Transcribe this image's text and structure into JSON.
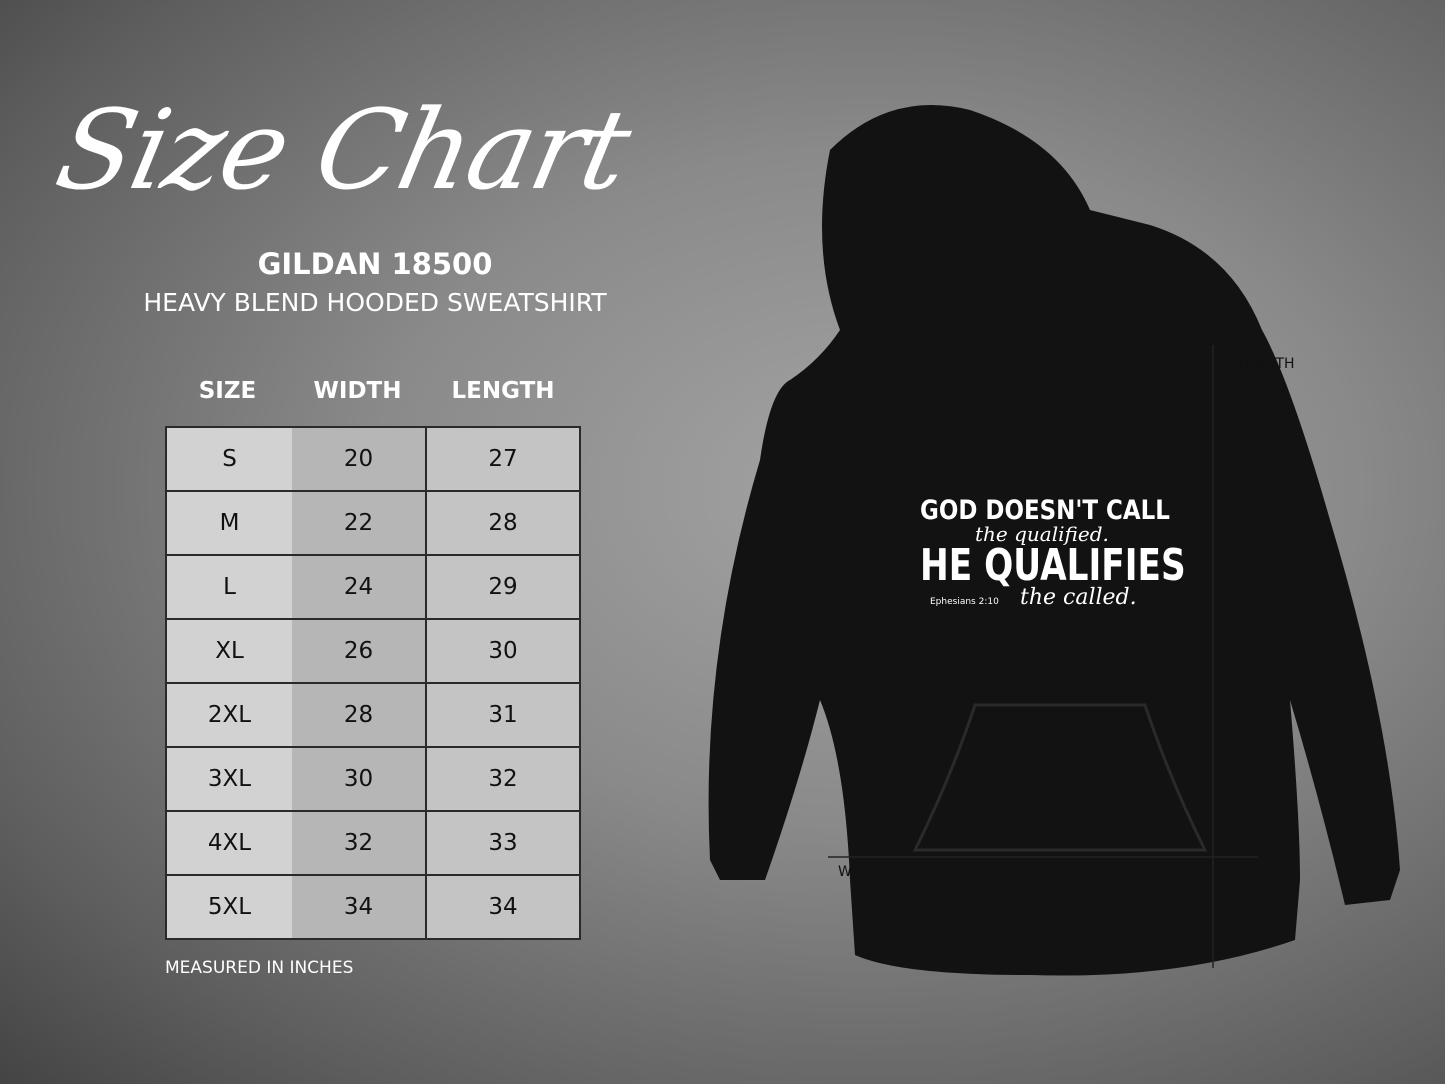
{
  "title": "Size Chart",
  "model": "GILDAN 18500",
  "description": "HEAVY BLEND HOODED SWEATSHIRT",
  "table": {
    "headers": [
      "SIZE",
      "WIDTH",
      "LENGTH"
    ],
    "rows": [
      [
        "S",
        "20",
        "27"
      ],
      [
        "M",
        "22",
        "28"
      ],
      [
        "L",
        "24",
        "29"
      ],
      [
        "XL",
        "26",
        "30"
      ],
      [
        "2XL",
        "28",
        "31"
      ],
      [
        "3XL",
        "30",
        "32"
      ],
      [
        "4XL",
        "32",
        "33"
      ],
      [
        "5XL",
        "34",
        "34"
      ]
    ]
  },
  "note": "MEASURED IN INCHES",
  "hoodie": {
    "color": "#111111",
    "print": {
      "line1": "GOD DOESN'T CALL",
      "line2": "the qualified.",
      "line3": "HE QUALIFIES",
      "line4": "the called.",
      "ref": "Ephesians 2:10"
    }
  },
  "measure": {
    "length": "LENGTH",
    "width": "WIDTH"
  }
}
